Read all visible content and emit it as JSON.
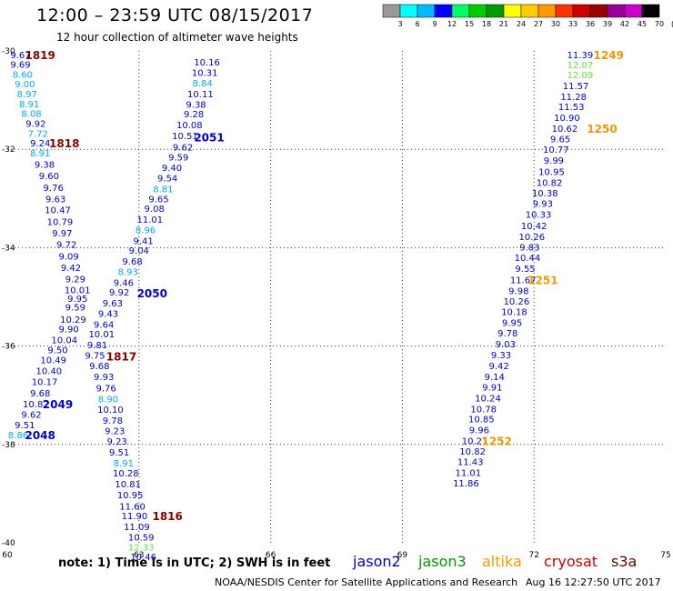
{
  "header": {
    "title": "12:00 – 23:59 UTC 08/15/2017",
    "subtitle": "12 hour collection of altimeter wave heights"
  },
  "footer": {
    "note": "note:  1) Time is in UTC;  2) SWH is in feet",
    "credit": "NOAA/NESDIS Center for Satellite Applications and Research",
    "timestamp": "Aug 16 12:27:50 UTC 2017"
  },
  "missions": [
    {
      "name": "jason2",
      "color": "#0000cc"
    },
    {
      "name": "jason3",
      "color": "#009900"
    },
    {
      "name": "altika",
      "color": "#ff9900"
    },
    {
      "name": "cryosat",
      "color": "#cc0000"
    },
    {
      "name": "s3a",
      "color": "#660000"
    }
  ],
  "colorscale": {
    "labels": [
      "3",
      "6",
      "9",
      "12",
      "15",
      "18",
      "21",
      "24",
      "27",
      "30",
      "33",
      "36",
      "39",
      "42",
      "45",
      "70",
      "(ft)"
    ],
    "colors": [
      "#999999",
      "#00ffff",
      "#00bbff",
      "#0000ff",
      "#00ff66",
      "#00cc00",
      "#009900",
      "#ffff00",
      "#ffcc00",
      "#ff9900",
      "#ff3300",
      "#cc0000",
      "#990000",
      "#990099",
      "#cc00cc",
      "#000000"
    ]
  },
  "chart_data": {
    "type": "scatter",
    "title": "12:00 – 23:59 UTC 08/15/2017",
    "xlabel": "",
    "ylabel": "",
    "xlim": [
      60,
      75
    ],
    "ylim": [
      -40,
      -30
    ],
    "xticks": [
      60,
      63,
      66,
      69,
      72,
      75
    ],
    "yticks": [
      -30,
      -32,
      -34,
      -36,
      -38,
      -40
    ],
    "grid": true,
    "points": [
      {
        "x": 60.3,
        "y": -30.07,
        "v": "9.67",
        "c": "#0000cc"
      },
      {
        "x": 60.3,
        "y": -30.27,
        "v": "9.69",
        "c": "#0000cc"
      },
      {
        "x": 60.35,
        "y": -30.47,
        "v": "8.60",
        "c": "#00aaff"
      },
      {
        "x": 60.4,
        "y": -30.67,
        "v": "9.00",
        "c": "#00aaff"
      },
      {
        "x": 60.45,
        "y": -30.87,
        "v": "8.97",
        "c": "#00aaff"
      },
      {
        "x": 60.5,
        "y": -31.07,
        "v": "8.91",
        "c": "#00aaff"
      },
      {
        "x": 60.55,
        "y": -31.27,
        "v": "8.08",
        "c": "#00aaff"
      },
      {
        "x": 60.65,
        "y": -31.47,
        "v": "9.92",
        "c": "#0000cc"
      },
      {
        "x": 60.7,
        "y": -31.67,
        "v": "7.72",
        "c": "#00aaff"
      },
      {
        "x": 60.75,
        "y": -31.87,
        "v": "9.24",
        "c": "#0000cc"
      },
      {
        "x": 60.75,
        "y": -32.07,
        "v": "8.91",
        "c": "#00aaff"
      },
      {
        "x": 60.85,
        "y": -32.3,
        "v": "9.38",
        "c": "#0000cc"
      },
      {
        "x": 60.95,
        "y": -32.53,
        "v": "9.60",
        "c": "#0000cc"
      },
      {
        "x": 61.05,
        "y": -32.77,
        "v": "9.76",
        "c": "#0000cc"
      },
      {
        "x": 61.1,
        "y": -33.0,
        "v": "9.63",
        "c": "#0000cc"
      },
      {
        "x": 61.15,
        "y": -33.23,
        "v": "10.47",
        "c": "#0000cc"
      },
      {
        "x": 61.2,
        "y": -33.47,
        "v": "10.79",
        "c": "#0000cc"
      },
      {
        "x": 61.25,
        "y": -33.7,
        "v": "9.97",
        "c": "#0000cc"
      },
      {
        "x": 61.35,
        "y": -33.93,
        "v": "9.72",
        "c": "#0000cc"
      },
      {
        "x": 61.4,
        "y": -34.17,
        "v": "9.09",
        "c": "#0000cc"
      },
      {
        "x": 61.45,
        "y": -34.4,
        "v": "9.42",
        "c": "#0000cc"
      },
      {
        "x": 61.55,
        "y": -34.63,
        "v": "9.29",
        "c": "#0000cc"
      },
      {
        "x": 61.6,
        "y": -34.85,
        "v": "10.01",
        "c": "#0000cc"
      },
      {
        "x": 61.6,
        "y": -35.03,
        "v": "9.95",
        "c": "#0000cc"
      },
      {
        "x": 61.55,
        "y": -35.2,
        "v": "9.59",
        "c": "#0000cc"
      },
      {
        "x": 61.5,
        "y": -35.45,
        "v": "10.29",
        "c": "#0000cc"
      },
      {
        "x": 61.4,
        "y": -35.65,
        "v": "9.90",
        "c": "#0000cc"
      },
      {
        "x": 61.3,
        "y": -35.87,
        "v": "10.04",
        "c": "#0000cc"
      },
      {
        "x": 61.15,
        "y": -36.07,
        "v": "9.50",
        "c": "#0000cc"
      },
      {
        "x": 61.05,
        "y": -36.28,
        "v": "10.49",
        "c": "#0000cc"
      },
      {
        "x": 60.95,
        "y": -36.5,
        "v": "10.40",
        "c": "#0000cc"
      },
      {
        "x": 60.85,
        "y": -36.72,
        "v": "10.17",
        "c": "#0000cc"
      },
      {
        "x": 60.75,
        "y": -36.95,
        "v": "9.68",
        "c": "#0000cc"
      },
      {
        "x": 60.65,
        "y": -37.17,
        "v": "10.82",
        "c": "#0000cc"
      },
      {
        "x": 60.55,
        "y": -37.38,
        "v": "9.62",
        "c": "#0000cc"
      },
      {
        "x": 60.4,
        "y": -37.6,
        "v": "9.51",
        "c": "#0000cc"
      },
      {
        "x": 60.25,
        "y": -37.8,
        "v": "8.86",
        "c": "#00aaff"
      },
      {
        "x": 64.55,
        "y": -30.22,
        "v": "10.16",
        "c": "#0000cc"
      },
      {
        "x": 64.5,
        "y": -30.43,
        "v": "10.31",
        "c": "#0000cc"
      },
      {
        "x": 64.45,
        "y": -30.65,
        "v": "8.84",
        "c": "#00aaff"
      },
      {
        "x": 64.4,
        "y": -30.87,
        "v": "10.11",
        "c": "#0000cc"
      },
      {
        "x": 64.3,
        "y": -31.08,
        "v": "9.38",
        "c": "#0000cc"
      },
      {
        "x": 64.25,
        "y": -31.28,
        "v": "9.28",
        "c": "#0000cc"
      },
      {
        "x": 64.15,
        "y": -31.5,
        "v": "10.08",
        "c": "#0000cc"
      },
      {
        "x": 64.05,
        "y": -31.72,
        "v": "10.51",
        "c": "#0000cc"
      },
      {
        "x": 64.0,
        "y": -31.95,
        "v": "9.62",
        "c": "#0000cc"
      },
      {
        "x": 63.9,
        "y": -32.15,
        "v": "9.59",
        "c": "#0000cc"
      },
      {
        "x": 63.75,
        "y": -32.37,
        "v": "9.40",
        "c": "#0000cc"
      },
      {
        "x": 63.65,
        "y": -32.58,
        "v": "9.54",
        "c": "#0000cc"
      },
      {
        "x": 63.55,
        "y": -32.8,
        "v": "8.81",
        "c": "#00aaff"
      },
      {
        "x": 63.45,
        "y": -33.0,
        "v": "9.65",
        "c": "#0000cc"
      },
      {
        "x": 63.35,
        "y": -33.2,
        "v": "9.08",
        "c": "#0000cc"
      },
      {
        "x": 63.25,
        "y": -33.42,
        "v": "11.01",
        "c": "#0000cc"
      },
      {
        "x": 63.15,
        "y": -33.63,
        "v": "8.96",
        "c": "#00aaff"
      },
      {
        "x": 63.1,
        "y": -33.85,
        "v": "9.41",
        "c": "#0000cc"
      },
      {
        "x": 63.0,
        "y": -34.05,
        "v": "9.04",
        "c": "#0000cc"
      },
      {
        "x": 62.85,
        "y": -34.27,
        "v": "9.68",
        "c": "#0000cc"
      },
      {
        "x": 62.75,
        "y": -34.48,
        "v": "8.93",
        "c": "#00aaff"
      },
      {
        "x": 62.65,
        "y": -34.7,
        "v": "9.46",
        "c": "#0000cc"
      },
      {
        "x": 62.55,
        "y": -34.9,
        "v": "9.92",
        "c": "#0000cc"
      },
      {
        "x": 62.4,
        "y": -35.12,
        "v": "9.63",
        "c": "#0000cc"
      },
      {
        "x": 62.3,
        "y": -35.33,
        "v": "9.43",
        "c": "#0000cc"
      },
      {
        "x": 62.2,
        "y": -35.55,
        "v": "9.64",
        "c": "#0000cc"
      },
      {
        "x": 62.15,
        "y": -35.75,
        "v": "10.01",
        "c": "#0000cc"
      },
      {
        "x": 62.05,
        "y": -35.97,
        "v": "9.81",
        "c": "#0000cc"
      },
      {
        "x": 62.0,
        "y": -36.18,
        "v": "9.75",
        "c": "#0000cc"
      },
      {
        "x": 62.1,
        "y": -36.4,
        "v": "9.68",
        "c": "#0000cc"
      },
      {
        "x": 62.2,
        "y": -36.62,
        "v": "9.93",
        "c": "#0000cc"
      },
      {
        "x": 62.25,
        "y": -36.85,
        "v": "9.76",
        "c": "#0000cc"
      },
      {
        "x": 62.3,
        "y": -37.07,
        "v": "8.90",
        "c": "#00aaff"
      },
      {
        "x": 62.35,
        "y": -37.28,
        "v": "10.10",
        "c": "#0000cc"
      },
      {
        "x": 62.4,
        "y": -37.5,
        "v": "9.78",
        "c": "#0000cc"
      },
      {
        "x": 62.45,
        "y": -37.72,
        "v": "9.23",
        "c": "#0000cc"
      },
      {
        "x": 62.5,
        "y": -37.93,
        "v": "9.23",
        "c": "#0000cc"
      },
      {
        "x": 62.55,
        "y": -38.15,
        "v": "9.51",
        "c": "#0000cc"
      },
      {
        "x": 62.65,
        "y": -38.37,
        "v": "8.91",
        "c": "#00aaff"
      },
      {
        "x": 62.7,
        "y": -38.58,
        "v": "10.28",
        "c": "#0000cc"
      },
      {
        "x": 62.75,
        "y": -38.8,
        "v": "10.81",
        "c": "#0000cc"
      },
      {
        "x": 62.8,
        "y": -39.02,
        "v": "10.95",
        "c": "#0000cc"
      },
      {
        "x": 62.85,
        "y": -39.25,
        "v": "11.60",
        "c": "#0000cc"
      },
      {
        "x": 62.9,
        "y": -39.45,
        "v": "11.90",
        "c": "#0000cc"
      },
      {
        "x": 62.95,
        "y": -39.67,
        "v": "11.09",
        "c": "#0000cc"
      },
      {
        "x": 63.05,
        "y": -39.88,
        "v": "10.59",
        "c": "#0000cc"
      },
      {
        "x": 63.05,
        "y": -40.08,
        "v": "12.33",
        "c": "#66dd44"
      },
      {
        "x": 63.1,
        "y": -40.28,
        "v": "10.46",
        "c": "#0000cc"
      },
      {
        "x": 73.05,
        "y": -30.07,
        "v": "11.39",
        "c": "#0000cc"
      },
      {
        "x": 73.05,
        "y": -30.28,
        "v": "12.07",
        "c": "#66dd44"
      },
      {
        "x": 73.05,
        "y": -30.48,
        "v": "12.09",
        "c": "#66dd44"
      },
      {
        "x": 72.95,
        "y": -30.7,
        "v": "11.57",
        "c": "#0000cc"
      },
      {
        "x": 72.9,
        "y": -30.92,
        "v": "11.28",
        "c": "#0000cc"
      },
      {
        "x": 72.85,
        "y": -31.13,
        "v": "11.53",
        "c": "#0000cc"
      },
      {
        "x": 72.75,
        "y": -31.35,
        "v": "10.90",
        "c": "#0000cc"
      },
      {
        "x": 72.7,
        "y": -31.57,
        "v": "10.62",
        "c": "#0000cc"
      },
      {
        "x": 72.6,
        "y": -31.78,
        "v": "9.65",
        "c": "#0000cc"
      },
      {
        "x": 72.5,
        "y": -32.0,
        "v": "10.77",
        "c": "#0000cc"
      },
      {
        "x": 72.45,
        "y": -32.22,
        "v": "9.99",
        "c": "#0000cc"
      },
      {
        "x": 72.4,
        "y": -32.45,
        "v": "10.95",
        "c": "#0000cc"
      },
      {
        "x": 72.35,
        "y": -32.67,
        "v": "10.82",
        "c": "#0000cc"
      },
      {
        "x": 72.25,
        "y": -32.88,
        "v": "10.38",
        "c": "#0000cc"
      },
      {
        "x": 72.2,
        "y": -33.1,
        "v": "9.93",
        "c": "#0000cc"
      },
      {
        "x": 72.1,
        "y": -33.32,
        "v": "10.33",
        "c": "#0000cc"
      },
      {
        "x": 72.0,
        "y": -33.55,
        "v": "10.42",
        "c": "#0000cc"
      },
      {
        "x": 71.95,
        "y": -33.77,
        "v": "10.26",
        "c": "#0000cc"
      },
      {
        "x": 71.9,
        "y": -33.98,
        "v": "9.83",
        "c": "#0000cc"
      },
      {
        "x": 71.85,
        "y": -34.2,
        "v": "10.44",
        "c": "#0000cc"
      },
      {
        "x": 71.8,
        "y": -34.42,
        "v": "9.55",
        "c": "#0000cc"
      },
      {
        "x": 71.75,
        "y": -34.65,
        "v": "11.67",
        "c": "#0000cc"
      },
      {
        "x": 71.65,
        "y": -34.87,
        "v": "9.98",
        "c": "#0000cc"
      },
      {
        "x": 71.6,
        "y": -35.08,
        "v": "10.26",
        "c": "#0000cc"
      },
      {
        "x": 71.55,
        "y": -35.3,
        "v": "10.18",
        "c": "#0000cc"
      },
      {
        "x": 71.5,
        "y": -35.52,
        "v": "9.95",
        "c": "#0000cc"
      },
      {
        "x": 71.4,
        "y": -35.73,
        "v": "9.78",
        "c": "#0000cc"
      },
      {
        "x": 71.35,
        "y": -35.95,
        "v": "9.03",
        "c": "#0000cc"
      },
      {
        "x": 71.25,
        "y": -36.17,
        "v": "9.33",
        "c": "#0000cc"
      },
      {
        "x": 71.2,
        "y": -36.4,
        "v": "9.42",
        "c": "#0000cc"
      },
      {
        "x": 71.1,
        "y": -36.62,
        "v": "9.14",
        "c": "#0000cc"
      },
      {
        "x": 71.05,
        "y": -36.83,
        "v": "9.91",
        "c": "#0000cc"
      },
      {
        "x": 70.95,
        "y": -37.05,
        "v": "10.24",
        "c": "#0000cc"
      },
      {
        "x": 70.85,
        "y": -37.27,
        "v": "10.78",
        "c": "#0000cc"
      },
      {
        "x": 70.8,
        "y": -37.48,
        "v": "10.85",
        "c": "#0000cc"
      },
      {
        "x": 70.75,
        "y": -37.7,
        "v": "9.96",
        "c": "#0000cc"
      },
      {
        "x": 70.65,
        "y": -37.92,
        "v": "10.21",
        "c": "#0000cc"
      },
      {
        "x": 70.6,
        "y": -38.13,
        "v": "10.82",
        "c": "#0000cc"
      },
      {
        "x": 70.55,
        "y": -38.35,
        "v": "11.43",
        "c": "#0000cc"
      },
      {
        "x": 70.5,
        "y": -38.57,
        "v": "11.01",
        "c": "#0000cc"
      },
      {
        "x": 70.45,
        "y": -38.78,
        "v": "11.86",
        "c": "#0000cc"
      }
    ],
    "annotations": [
      {
        "text": "1819",
        "x": 60.75,
        "y": -30.07,
        "c": "#880000"
      },
      {
        "text": "2051",
        "x": 64.6,
        "y": -31.75,
        "c": "#0000cc"
      },
      {
        "text": "1818",
        "x": 61.3,
        "y": -31.87,
        "c": "#880000"
      },
      {
        "text": "2050",
        "x": 63.3,
        "y": -34.92,
        "c": "#0000cc"
      },
      {
        "text": "1817",
        "x": 62.6,
        "y": -36.2,
        "c": "#880000"
      },
      {
        "text": "2049",
        "x": 61.15,
        "y": -37.17,
        "c": "#0000cc"
      },
      {
        "text": "2048",
        "x": 60.75,
        "y": -37.8,
        "c": "#0000cc"
      },
      {
        "text": "1816",
        "x": 63.65,
        "y": -39.45,
        "c": "#880000"
      },
      {
        "text": "1249",
        "x": 73.7,
        "y": -30.07,
        "c": "#ee9900"
      },
      {
        "text": "1250",
        "x": 73.55,
        "y": -31.57,
        "c": "#ee9900"
      },
      {
        "text": "1251",
        "x": 72.2,
        "y": -34.65,
        "c": "#ee9900"
      },
      {
        "text": "1252",
        "x": 71.15,
        "y": -37.92,
        "c": "#ee9900"
      }
    ]
  }
}
